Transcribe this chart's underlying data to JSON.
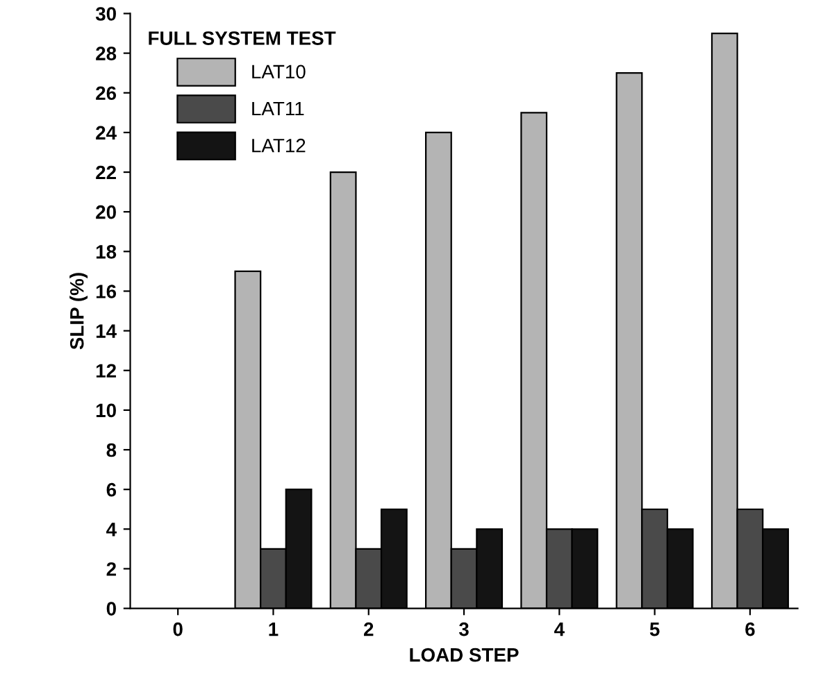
{
  "chart_data": {
    "type": "bar",
    "xlabel": "LOAD STEP",
    "ylabel": "SLIP (%)",
    "legend_title": "FULL SYSTEM TEST",
    "categories": [
      "0",
      "1",
      "2",
      "3",
      "4",
      "5",
      "6"
    ],
    "series": [
      {
        "name": "LAT10",
        "color": "#b4b4b4",
        "values": [
          null,
          17,
          22,
          24,
          25,
          27,
          29
        ]
      },
      {
        "name": "LAT11",
        "color": "#4a4a4a",
        "values": [
          null,
          3,
          3,
          3,
          4,
          5,
          5
        ]
      },
      {
        "name": "LAT12",
        "color": "#141414",
        "values": [
          null,
          6,
          5,
          4,
          4,
          4,
          4
        ]
      }
    ],
    "ylim": [
      0,
      30
    ],
    "yticks": [
      0,
      2,
      4,
      6,
      8,
      10,
      12,
      14,
      16,
      18,
      20,
      22,
      24,
      26,
      28,
      30
    ],
    "grid": false,
    "legend": "top left"
  }
}
